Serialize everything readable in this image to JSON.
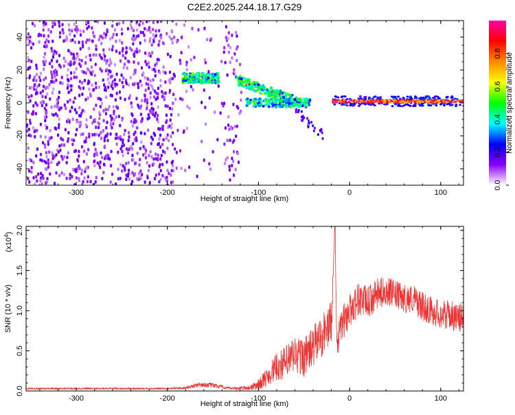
{
  "title": "C2E2.2025.244.18.17.G29",
  "chart_data": [
    {
      "type": "heatmap",
      "title": "C2E2.2025.244.18.17.G29",
      "xlabel": "Height of straight line (km)",
      "ylabel": "Frequency (Hz)",
      "xlim": [
        -355,
        125
      ],
      "ylim": [
        -50,
        50
      ],
      "xticks": [
        -300,
        -200,
        -100,
        0,
        100
      ],
      "yticks": [
        -40,
        -20,
        0,
        20,
        40
      ],
      "colorbar": {
        "label": "Normalized spectral amplitude",
        "range": [
          0,
          1
        ],
        "ticks": [
          0.0,
          0.2,
          0.4,
          0.6,
          0.8
        ],
        "tick_labels": [
          "0.0",
          "0.2",
          "0.4",
          "0.6",
          "0.8"
        ],
        "colors": [
          "#ffffff",
          "#8800ff",
          "#0000ff",
          "#00ffff",
          "#00ff00",
          "#ffff00",
          "#ff8800",
          "#ff0000",
          "#ff00aa"
        ]
      },
      "features": [
        {
          "name": "background noise",
          "x_range": [
            -355,
            -120
          ],
          "y_range": [
            -50,
            50
          ],
          "amplitude": 0.12
        },
        {
          "name": "early signal band",
          "x_range": [
            -185,
            -145
          ],
          "center_freq": 15,
          "amplitude": 0.45
        },
        {
          "name": "transition band",
          "x_range": [
            -125,
            -60
          ],
          "center_freq_start": 14,
          "center_freq_end": 1,
          "amplitude": 0.5
        },
        {
          "name": "lower branch",
          "x_range": [
            -115,
            -45
          ],
          "center_freq": 0,
          "amplitude": 0.4
        },
        {
          "name": "tail",
          "x_range": [
            -60,
            -30
          ],
          "center_freq_start": -5,
          "center_freq_end": -20,
          "amplitude": 0.15
        },
        {
          "name": "carrier",
          "x_range": [
            -20,
            125
          ],
          "center_freq": 1,
          "amplitude": 0.9
        }
      ]
    },
    {
      "type": "line",
      "xlabel": "Height of straight line (km)",
      "ylabel": "SNR (10 * v/v)",
      "scale_label": "(x10",
      "scale_exponent": "4",
      "scale_close": ")",
      "xlim": [
        -355,
        125
      ],
      "ylim": [
        0,
        20500
      ],
      "xticks": [
        -300,
        -200,
        -100,
        0,
        100
      ],
      "yticks": [
        0,
        5000,
        10000,
        15000,
        20000
      ],
      "ytick_labels": [
        "0.0",
        "0.5",
        "1.0",
        "1.5",
        "2.0"
      ],
      "color": "#ee3333",
      "series": [
        {
          "name": "SNR",
          "x": [
            -355,
            -300,
            -250,
            -200,
            -180,
            -165,
            -150,
            -130,
            -110,
            -100,
            -90,
            -80,
            -70,
            -60,
            -50,
            -40,
            -30,
            -20,
            -16,
            -14,
            -10,
            0,
            10,
            20,
            30,
            40,
            50,
            60,
            70,
            80,
            90,
            100,
            110,
            120,
            125
          ],
          "y": [
            300,
            300,
            300,
            300,
            400,
            800,
            700,
            300,
            400,
            800,
            1800,
            3000,
            3500,
            4500,
            4200,
            5500,
            7000,
            8500,
            20500,
            5000,
            8000,
            10000,
            11500,
            11000,
            12000,
            12500,
            12000,
            11500,
            11500,
            10500,
            10000,
            9500,
            9500,
            9000,
            9500
          ],
          "noise": [
            100,
            100,
            100,
            100,
            150,
            300,
            300,
            150,
            300,
            700,
            1200,
            1800,
            2200,
            2500,
            2500,
            2600,
            2800,
            2800,
            0,
            1500,
            2200,
            2200,
            2200,
            2000,
            2000,
            1800,
            1800,
            1800,
            1800,
            1800,
            1800,
            1800,
            1800,
            1800,
            1800
          ]
        }
      ]
    }
  ]
}
